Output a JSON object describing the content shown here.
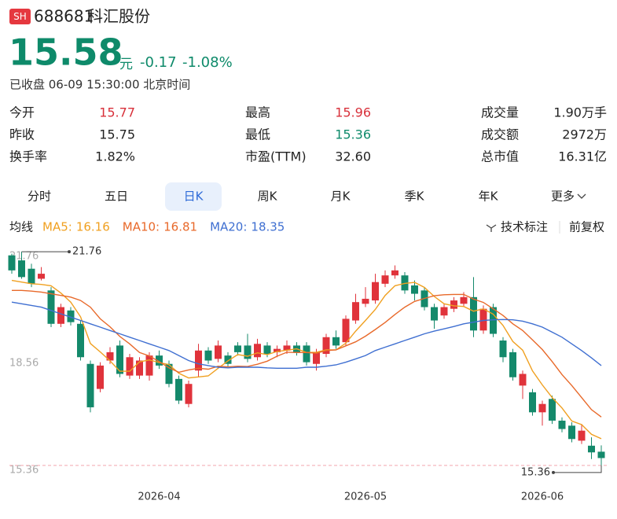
{
  "header": {
    "badge": "SH",
    "code": "688681",
    "name": "科汇股份"
  },
  "quote": {
    "price": "15.58",
    "unit": "元",
    "change": "-0.17",
    "change_pct": "-1.08%",
    "status": "已收盘 06-09 15:30:00 北京时间",
    "color": "#0e8a6a"
  },
  "stats": [
    [
      {
        "label": "今开",
        "value": "15.77",
        "color": "#d8303a"
      },
      {
        "label": "最高",
        "value": "15.96",
        "color": "#d8303a"
      },
      {
        "label": "成交量",
        "value": "1.90万手",
        "color": "#222"
      }
    ],
    [
      {
        "label": "昨收",
        "value": "15.75",
        "color": "#222"
      },
      {
        "label": "最低",
        "value": "15.36",
        "color": "#0e8a6a"
      },
      {
        "label": "成交额",
        "value": "2972万",
        "color": "#222"
      }
    ],
    [
      {
        "label": "换手率",
        "value": "1.82%",
        "color": "#222"
      },
      {
        "label": "市盈(TTM)",
        "value": "32.60",
        "color": "#222"
      },
      {
        "label": "总市值",
        "value": "16.31亿",
        "color": "#222"
      }
    ]
  ],
  "tabs": [
    "分时",
    "五日",
    "日K",
    "周K",
    "月K",
    "季K",
    "年K",
    "更多"
  ],
  "active_tab": "日K",
  "indicator_bar": {
    "label": "均线",
    "tools": [
      "技术标注",
      "前复权"
    ]
  },
  "chart_data": {
    "type": "candlestick",
    "categories": [
      null,
      null,
      null,
      null,
      null,
      null,
      null,
      null,
      null,
      null,
      null,
      null,
      null,
      null,
      null,
      "2026-04",
      null,
      null,
      null,
      null,
      null,
      null,
      null,
      null,
      null,
      null,
      null,
      null,
      null,
      null,
      null,
      null,
      null,
      null,
      null,
      null,
      "2026-05",
      null,
      null,
      null,
      null,
      null,
      null,
      null,
      null,
      null,
      null,
      null,
      null,
      null,
      null,
      null,
      null,
      null,
      "2026-06",
      null,
      null,
      null,
      null,
      null,
      null
    ],
    "open": [
      21.65,
      21.5,
      21.25,
      20.95,
      20.6,
      19.6,
      20.0,
      19.6,
      18.4,
      17.65,
      18.5,
      18.95,
      18.05,
      18.05,
      18.05,
      18.65,
      18.4,
      17.95,
      17.2,
      18.2,
      18.8,
      18.55,
      18.65,
      18.95,
      18.95,
      18.6,
      18.95,
      18.75,
      18.8,
      18.95,
      18.95,
      18.4,
      18.7,
      19.2,
      19.05,
      19.7,
      20.2,
      20.3,
      20.8,
      21.05,
      21.05,
      20.75,
      20.6,
      20.1,
      19.85,
      20.05,
      20.2,
      20.4,
      19.4,
      20.1,
      19.1,
      18.75,
      17.75,
      17.55,
      16.95,
      17.35,
      16.7,
      16.55,
      16.1,
      15.95,
      15.77
    ],
    "high": [
      21.7,
      21.76,
      21.4,
      21.3,
      20.7,
      20.2,
      20.1,
      19.7,
      18.5,
      18.45,
      18.9,
      19.1,
      18.7,
      18.6,
      18.75,
      18.8,
      18.5,
      18.05,
      17.9,
      19.0,
      18.9,
      19.1,
      18.75,
      19.05,
      19.3,
      19.15,
      19.05,
      18.95,
      19.1,
      19.05,
      19.05,
      18.85,
      19.3,
      19.4,
      19.85,
      20.5,
      20.7,
      21.1,
      21.2,
      21.35,
      21.15,
      20.9,
      20.7,
      20.2,
      20.2,
      20.4,
      20.55,
      21.0,
      20.15,
      20.2,
      19.2,
      18.85,
      18.2,
      17.65,
      17.3,
      17.45,
      16.8,
      16.65,
      16.6,
      16.2,
      15.96
    ],
    "low": [
      21.1,
      20.95,
      20.7,
      20.9,
      19.5,
      19.5,
      19.55,
      18.5,
      16.95,
      17.55,
      18.4,
      18.0,
      17.95,
      17.95,
      17.9,
      18.25,
      17.7,
      17.2,
      17.1,
      18.0,
      18.4,
      18.45,
      18.3,
      18.65,
      18.45,
      18.5,
      18.6,
      18.6,
      18.7,
      18.65,
      18.35,
      18.2,
      18.6,
      18.85,
      18.95,
      19.6,
      20.1,
      20.2,
      20.7,
      20.95,
      20.5,
      20.3,
      20.0,
      19.45,
      19.75,
      19.95,
      20.1,
      19.2,
      19.3,
      19.2,
      18.45,
      17.9,
      17.35,
      16.85,
      16.55,
      16.6,
      16.35,
      16.05,
      16.0,
      15.55,
      15.36
    ],
    "close": [
      21.2,
      21.0,
      20.8,
      21.1,
      19.6,
      20.1,
      19.65,
      18.6,
      17.1,
      18.35,
      18.75,
      18.1,
      18.6,
      18.5,
      18.65,
      18.35,
      17.8,
      17.3,
      17.8,
      18.8,
      18.5,
      18.95,
      18.4,
      18.75,
      18.55,
      19.0,
      18.7,
      18.85,
      18.95,
      18.75,
      18.45,
      18.75,
      19.2,
      18.95,
      19.75,
      20.25,
      20.35,
      20.85,
      21.05,
      21.2,
      20.6,
      20.5,
      20.1,
      19.7,
      20.1,
      20.3,
      20.4,
      19.4,
      20.05,
      19.3,
      18.6,
      18.0,
      18.1,
      16.95,
      17.2,
      16.7,
      16.45,
      16.15,
      16.4,
      15.75,
      15.58
    ],
    "up_color": "#e0333b",
    "down_color": "#14896b",
    "ylim": [
      15.05,
      21.95
    ],
    "yticks": [
      15.36,
      18.56,
      21.76
    ],
    "high_marker": 21.76,
    "low_marker": 15.36,
    "ma": [
      {
        "name": "MA5:",
        "color": "#f0a020",
        "current": 16.16,
        "values": [
          20.9,
          20.85,
          20.8,
          20.78,
          20.74,
          20.52,
          20.25,
          19.81,
          19.01,
          18.76,
          18.49,
          18.18,
          18.18,
          18.46,
          18.52,
          18.44,
          18.38,
          18.12,
          17.98,
          18.01,
          18.04,
          18.27,
          18.49,
          18.68,
          18.63,
          18.73,
          18.68,
          18.77,
          18.81,
          18.85,
          18.74,
          18.75,
          18.82,
          18.82,
          19.02,
          19.38,
          19.7,
          20.03,
          20.45,
          20.74,
          20.81,
          20.84,
          20.69,
          20.42,
          20.2,
          20.14,
          20.12,
          19.98,
          20.05,
          19.89,
          19.55,
          19.07,
          18.81,
          18.19,
          17.77,
          17.39,
          17.08,
          16.69,
          16.58,
          16.29,
          16.16
        ]
      },
      {
        "name": "MA10:",
        "color": "#e8692a",
        "current": 16.81,
        "values": [
          20.6,
          20.6,
          20.58,
          20.55,
          20.5,
          20.45,
          20.4,
          20.3,
          20.1,
          19.75,
          19.51,
          19.22,
          19.0,
          18.74,
          18.64,
          18.47,
          18.28,
          18.15,
          18.22,
          18.27,
          18.24,
          18.33,
          18.31,
          18.33,
          18.32,
          18.39,
          18.48,
          18.63,
          18.75,
          18.74,
          18.74,
          18.72,
          18.8,
          18.82,
          18.94,
          19.06,
          19.23,
          19.43,
          19.64,
          19.88,
          20.1,
          20.27,
          20.36,
          20.44,
          20.47,
          20.48,
          20.48,
          20.34,
          20.24,
          20.05,
          19.85,
          19.6,
          19.4,
          19.12,
          18.83,
          18.47,
          18.08,
          17.75,
          17.39,
          17.03,
          16.81
        ]
      },
      {
        "name": "MA20:",
        "color": "#3f6fd1",
        "current": 18.35,
        "values": [
          20.25,
          20.2,
          20.15,
          20.1,
          20.0,
          19.9,
          19.8,
          19.7,
          19.6,
          19.5,
          19.4,
          19.3,
          19.2,
          19.1,
          19.0,
          18.9,
          18.8,
          18.65,
          18.5,
          18.4,
          18.35,
          18.3,
          18.28,
          18.3,
          18.3,
          18.3,
          18.28,
          18.27,
          18.27,
          18.27,
          18.3,
          18.3,
          18.33,
          18.37,
          18.45,
          18.55,
          18.65,
          18.8,
          18.9,
          19.0,
          19.1,
          19.2,
          19.3,
          19.38,
          19.45,
          19.52,
          19.6,
          19.65,
          19.7,
          19.72,
          19.73,
          19.72,
          19.68,
          19.6,
          19.5,
          19.35,
          19.2,
          19.0,
          18.8,
          18.58,
          18.35
        ]
      }
    ]
  }
}
